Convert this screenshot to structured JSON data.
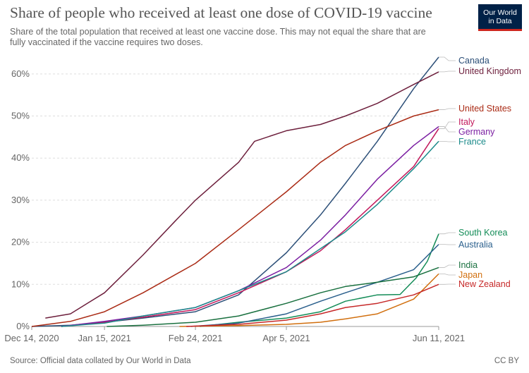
{
  "header": {
    "title": "Share of people who received at least one dose of COVID-19 vaccine",
    "subtitle": "Share of the total population that received at least one vaccine dose. This may not equal the share that are fully vaccinated if the vaccine requires two doses.",
    "logo_line1": "Our World",
    "logo_line2": "in Data"
  },
  "footer": {
    "source": "Source: Official data collated by Our World in Data",
    "license": "CC BY"
  },
  "chart_data": {
    "type": "line",
    "title": "Share of people who received at least one dose of COVID-19 vaccine",
    "xlabel": "",
    "ylabel": "",
    "x_ticks": [
      "Dec 14, 2020",
      "Jan 15, 2021",
      "Feb 24, 2021",
      "Apr 5, 2021",
      "Jun 11, 2021"
    ],
    "x_range": [
      "2020-12-14",
      "2021-06-11"
    ],
    "y_ticks": [
      "0%",
      "10%",
      "20%",
      "30%",
      "40%",
      "50%",
      "60%"
    ],
    "ylim": [
      0,
      65
    ],
    "y_unit": "%",
    "grid": "horizontal dashed",
    "legend": "line end labels on right",
    "series": [
      {
        "name": "Canada",
        "color": "#2c4f78",
        "points": [
          [
            "2020-12-14",
            0
          ],
          [
            "2020-12-31",
            0.3
          ],
          [
            "2021-01-15",
            1.0
          ],
          [
            "2021-02-01",
            2.0
          ],
          [
            "2021-02-24",
            3.5
          ],
          [
            "2021-03-15",
            7.5
          ],
          [
            "2021-04-05",
            17.5
          ],
          [
            "2021-04-20",
            26.5
          ],
          [
            "2021-05-01",
            34.0
          ],
          [
            "2021-05-15",
            44.0
          ],
          [
            "2021-05-31",
            56.5
          ],
          [
            "2021-06-11",
            64.0
          ]
        ]
      },
      {
        "name": "United Kingdom",
        "color": "#6d1f3c",
        "points": [
          [
            "2020-12-20",
            2.0
          ],
          [
            "2020-12-31",
            3.0
          ],
          [
            "2021-01-15",
            8.0
          ],
          [
            "2021-02-01",
            17.0
          ],
          [
            "2021-02-15",
            25.0
          ],
          [
            "2021-02-24",
            30.0
          ],
          [
            "2021-03-15",
            39.0
          ],
          [
            "2021-03-22",
            44.0
          ],
          [
            "2021-04-05",
            46.5
          ],
          [
            "2021-04-20",
            48.0
          ],
          [
            "2021-05-01",
            50.0
          ],
          [
            "2021-05-15",
            53.0
          ],
          [
            "2021-05-31",
            57.5
          ],
          [
            "2021-06-11",
            60.5
          ]
        ]
      },
      {
        "name": "United States",
        "color": "#aa2b15",
        "points": [
          [
            "2020-12-14",
            0
          ],
          [
            "2020-12-31",
            1.2
          ],
          [
            "2021-01-15",
            3.5
          ],
          [
            "2021-02-01",
            8.0
          ],
          [
            "2021-02-24",
            15.0
          ],
          [
            "2021-03-15",
            23.0
          ],
          [
            "2021-04-05",
            32.0
          ],
          [
            "2021-04-20",
            39.0
          ],
          [
            "2021-05-01",
            43.0
          ],
          [
            "2021-05-15",
            46.5
          ],
          [
            "2021-05-31",
            50.0
          ],
          [
            "2021-06-11",
            51.5
          ]
        ]
      },
      {
        "name": "Italy",
        "color": "#c2185b",
        "points": [
          [
            "2020-12-27",
            0
          ],
          [
            "2021-01-15",
            1.0
          ],
          [
            "2021-02-01",
            2.2
          ],
          [
            "2021-02-24",
            4.0
          ],
          [
            "2021-03-15",
            8.0
          ],
          [
            "2021-04-05",
            13.0
          ],
          [
            "2021-04-20",
            18.0
          ],
          [
            "2021-05-01",
            23.0
          ],
          [
            "2021-05-15",
            30.0
          ],
          [
            "2021-05-31",
            38.0
          ],
          [
            "2021-06-11",
            47.0
          ]
        ]
      },
      {
        "name": "Germany",
        "color": "#7b1fa2",
        "points": [
          [
            "2020-12-27",
            0
          ],
          [
            "2021-01-15",
            1.2
          ],
          [
            "2021-02-01",
            2.5
          ],
          [
            "2021-02-24",
            4.5
          ],
          [
            "2021-03-15",
            8.5
          ],
          [
            "2021-04-05",
            14.0
          ],
          [
            "2021-04-20",
            20.5
          ],
          [
            "2021-05-01",
            26.5
          ],
          [
            "2021-05-15",
            35.0
          ],
          [
            "2021-05-31",
            43.0
          ],
          [
            "2021-06-11",
            47.5
          ]
        ]
      },
      {
        "name": "France",
        "color": "#1a8a8a",
        "points": [
          [
            "2020-12-27",
            0
          ],
          [
            "2021-01-15",
            0.8
          ],
          [
            "2021-02-01",
            2.5
          ],
          [
            "2021-02-24",
            4.5
          ],
          [
            "2021-03-15",
            8.5
          ],
          [
            "2021-04-05",
            13.0
          ],
          [
            "2021-04-20",
            18.5
          ],
          [
            "2021-05-01",
            22.5
          ],
          [
            "2021-05-15",
            29.0
          ],
          [
            "2021-05-31",
            37.5
          ],
          [
            "2021-06-11",
            44.0
          ]
        ]
      },
      {
        "name": "South Korea",
        "color": "#138c57",
        "points": [
          [
            "2021-02-26",
            0
          ],
          [
            "2021-03-15",
            1.0
          ],
          [
            "2021-04-05",
            2.0
          ],
          [
            "2021-04-20",
            3.5
          ],
          [
            "2021-05-01",
            6.0
          ],
          [
            "2021-05-15",
            7.5
          ],
          [
            "2021-05-25",
            7.6
          ],
          [
            "2021-06-01",
            11.5
          ],
          [
            "2021-06-06",
            15.5
          ],
          [
            "2021-06-11",
            22.0
          ]
        ]
      },
      {
        "name": "Australia",
        "color": "#2a5f8c",
        "points": [
          [
            "2021-02-22",
            0
          ],
          [
            "2021-03-15",
            0.8
          ],
          [
            "2021-04-05",
            3.0
          ],
          [
            "2021-04-20",
            6.0
          ],
          [
            "2021-05-01",
            8.0
          ],
          [
            "2021-05-15",
            10.5
          ],
          [
            "2021-05-31",
            13.5
          ],
          [
            "2021-06-11",
            19.5
          ]
        ]
      },
      {
        "name": "India",
        "color": "#19703f",
        "points": [
          [
            "2021-01-16",
            0
          ],
          [
            "2021-02-01",
            0.3
          ],
          [
            "2021-02-24",
            1.0
          ],
          [
            "2021-03-15",
            2.5
          ],
          [
            "2021-04-05",
            5.5
          ],
          [
            "2021-04-20",
            8.0
          ],
          [
            "2021-05-01",
            9.5
          ],
          [
            "2021-05-15",
            10.5
          ],
          [
            "2021-05-31",
            11.8
          ],
          [
            "2021-06-11",
            14.0
          ]
        ]
      },
      {
        "name": "Japan",
        "color": "#d16f0e",
        "points": [
          [
            "2021-02-17",
            0
          ],
          [
            "2021-03-15",
            0.2
          ],
          [
            "2021-04-05",
            0.5
          ],
          [
            "2021-04-20",
            1.0
          ],
          [
            "2021-05-01",
            1.8
          ],
          [
            "2021-05-15",
            3.0
          ],
          [
            "2021-05-31",
            6.5
          ],
          [
            "2021-06-11",
            12.5
          ]
        ]
      },
      {
        "name": "New Zealand",
        "color": "#c62828",
        "points": [
          [
            "2021-02-20",
            0
          ],
          [
            "2021-03-15",
            0.5
          ],
          [
            "2021-04-05",
            1.5
          ],
          [
            "2021-04-20",
            3.0
          ],
          [
            "2021-05-01",
            4.5
          ],
          [
            "2021-05-15",
            5.5
          ],
          [
            "2021-05-31",
            7.5
          ],
          [
            "2021-06-11",
            10.0
          ]
        ]
      }
    ]
  }
}
